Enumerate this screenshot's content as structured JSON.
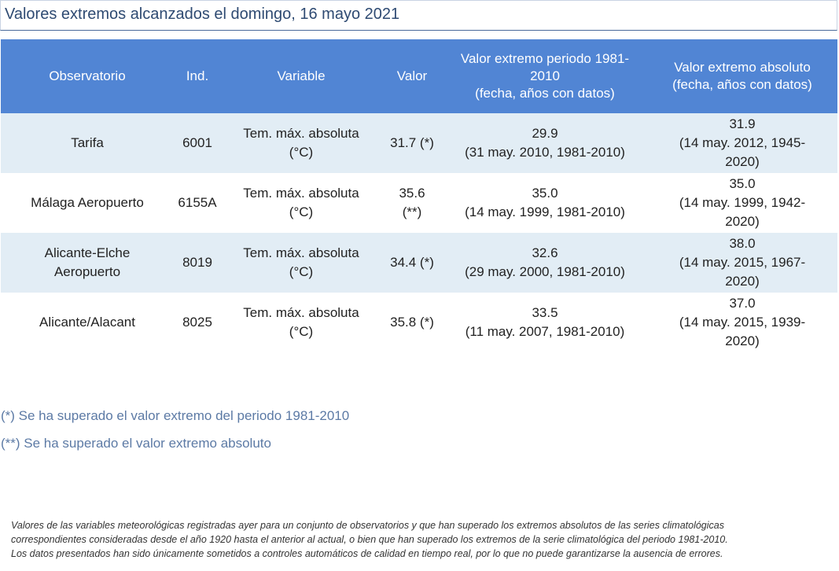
{
  "title": "Valores extremos alcanzados el domingo, 16 mayo 2021",
  "table": {
    "headers": [
      [
        "Observatorio"
      ],
      [
        "Ind."
      ],
      [
        "Variable"
      ],
      [
        "Valor"
      ],
      [
        "Valor extremo periodo 1981-",
        "2010",
        "(fecha, años con datos)"
      ],
      [
        "Valor extremo absoluto",
        "(fecha, años con datos)"
      ]
    ],
    "rows": [
      {
        "observatorio": [
          "Tarifa"
        ],
        "ind": "6001",
        "variable": [
          "Tem. máx. absoluta",
          "(°C)"
        ],
        "valor": [
          "31.7 (*)"
        ],
        "extremo_periodo": [
          "29.9",
          "(31 may. 2010, 1981-2010)"
        ],
        "extremo_absoluto": [
          "31.9",
          "(14 may. 2012, 1945-",
          "2020)"
        ]
      },
      {
        "observatorio": [
          "Málaga Aeropuerto"
        ],
        "ind": "6155A",
        "variable": [
          "Tem. máx. absoluta",
          "(°C)"
        ],
        "valor": [
          "35.6",
          "(**)"
        ],
        "extremo_periodo": [
          "35.0",
          "(14 may. 1999, 1981-2010)"
        ],
        "extremo_absoluto": [
          "35.0",
          "(14 may. 1999, 1942-",
          "2020)"
        ]
      },
      {
        "observatorio": [
          "Alicante-Elche",
          "Aeropuerto"
        ],
        "ind": "8019",
        "variable": [
          "Tem. máx. absoluta",
          "(°C)"
        ],
        "valor": [
          "34.4 (*)"
        ],
        "extremo_periodo": [
          "32.6",
          "(29 may. 2000, 1981-2010)"
        ],
        "extremo_absoluto": [
          "38.0",
          "(14 may. 2015, 1967-",
          "2020)"
        ]
      },
      {
        "observatorio": [
          "Alicante/Alacant"
        ],
        "ind": "8025",
        "variable": [
          "Tem. máx. absoluta",
          "(°C)"
        ],
        "valor": [
          "35.8 (*)"
        ],
        "extremo_periodo": [
          "33.5",
          "(11 may. 2007, 1981-2010)"
        ],
        "extremo_absoluto": [
          "37.0",
          "(14 may. 2015, 1939-",
          "2020)"
        ]
      }
    ]
  },
  "notes": [
    "(*) Se ha superado el valor extremo del periodo 1981-2010",
    "(**) Se ha superado el valor extremo absoluto"
  ],
  "footer": [
    "Valores de las variables meteorológicas registradas ayer para un conjunto de observatorios y que han superado los extremos absolutos de las series climatológicas",
    "correspondientes consideradas desde el año 1920 hasta el anterior al actual, o bien que han superado los extremos de la serie climatológica del periodo 1981-2010.",
    "Los datos presentados han sido únicamente sometidos a controles automáticos de calidad en tiempo real, por lo que no puede garantizarse la ausencia de errores."
  ],
  "colors": {
    "header_bg": "#5185d4",
    "row_alt_bg": "#e2edf5",
    "title_color": "#2e4a72",
    "note_color": "#5c7aa5"
  }
}
